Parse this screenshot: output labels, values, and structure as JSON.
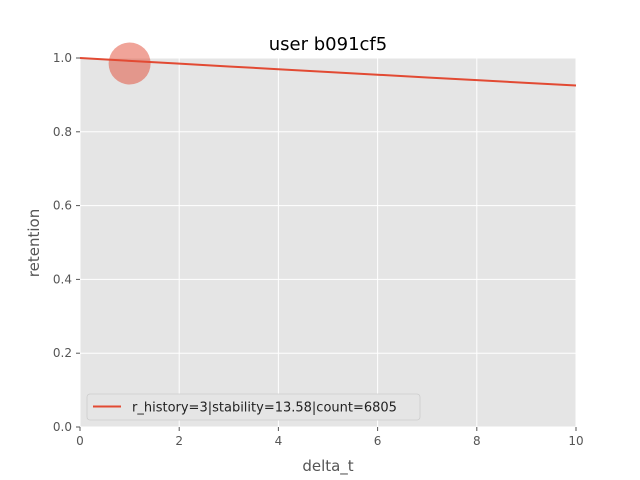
{
  "chart_data": {
    "type": "line",
    "title": "user b091cf5",
    "xlabel": "delta_t",
    "ylabel": "retention",
    "xlim": [
      0,
      10
    ],
    "ylim": [
      0,
      1.0
    ],
    "xticks": [
      0,
      2,
      4,
      6,
      8,
      10
    ],
    "yticks": [
      0.0,
      0.2,
      0.4,
      0.6,
      0.8,
      1.0
    ],
    "xtick_labels": [
      "0",
      "2",
      "4",
      "6",
      "8",
      "10"
    ],
    "ytick_labels": [
      "0.0",
      "0.2",
      "0.4",
      "0.6",
      "0.8",
      "1.0"
    ],
    "grid": true,
    "legend_position": "lower-left",
    "series": [
      {
        "name": "r_history=3|stability=13.58|count=6805",
        "color": "#E24A33",
        "x": [
          0,
          1,
          2,
          3,
          4,
          5,
          6,
          7,
          8,
          9,
          10
        ],
        "y": [
          1.0,
          0.9923,
          0.9846,
          0.9771,
          0.9695,
          0.9621,
          0.9547,
          0.9473,
          0.94,
          0.9327,
          0.9255
        ]
      }
    ],
    "scatter": [
      {
        "x": 1,
        "y": 0.985,
        "color": "#E24A33",
        "alpha": 0.5
      }
    ]
  }
}
